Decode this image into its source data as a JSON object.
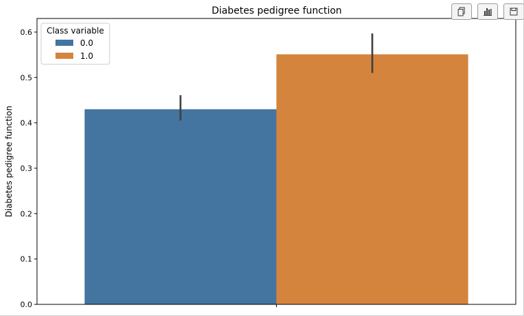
{
  "toolbar": {
    "buttons": [
      {
        "name": "copy",
        "icon": "copy-icon"
      },
      {
        "name": "chart",
        "icon": "bar-chart-icon"
      },
      {
        "name": "save",
        "icon": "save-icon"
      }
    ]
  },
  "chart_data": {
    "type": "bar",
    "title": "Diabetes pedigree function",
    "xlabel": "",
    "ylabel": "Diabetes pedigree function",
    "ylim": [
      0,
      0.63
    ],
    "yticks": [
      0.0,
      0.1,
      0.2,
      0.3,
      0.4,
      0.5,
      0.6
    ],
    "ytick_labels": [
      "0.0",
      "0.1",
      "0.2",
      "0.3",
      "0.4",
      "0.5",
      "0.6"
    ],
    "grid": false,
    "legend": {
      "title": "Class variable",
      "placement": "top-left"
    },
    "series": [
      {
        "name": "0.0",
        "value": 0.43,
        "error": [
          0.405,
          0.461
        ],
        "color": "#4474a0"
      },
      {
        "name": "1.0",
        "value": 0.551,
        "error": [
          0.51,
          0.597
        ],
        "color": "#d5843e"
      }
    ]
  }
}
